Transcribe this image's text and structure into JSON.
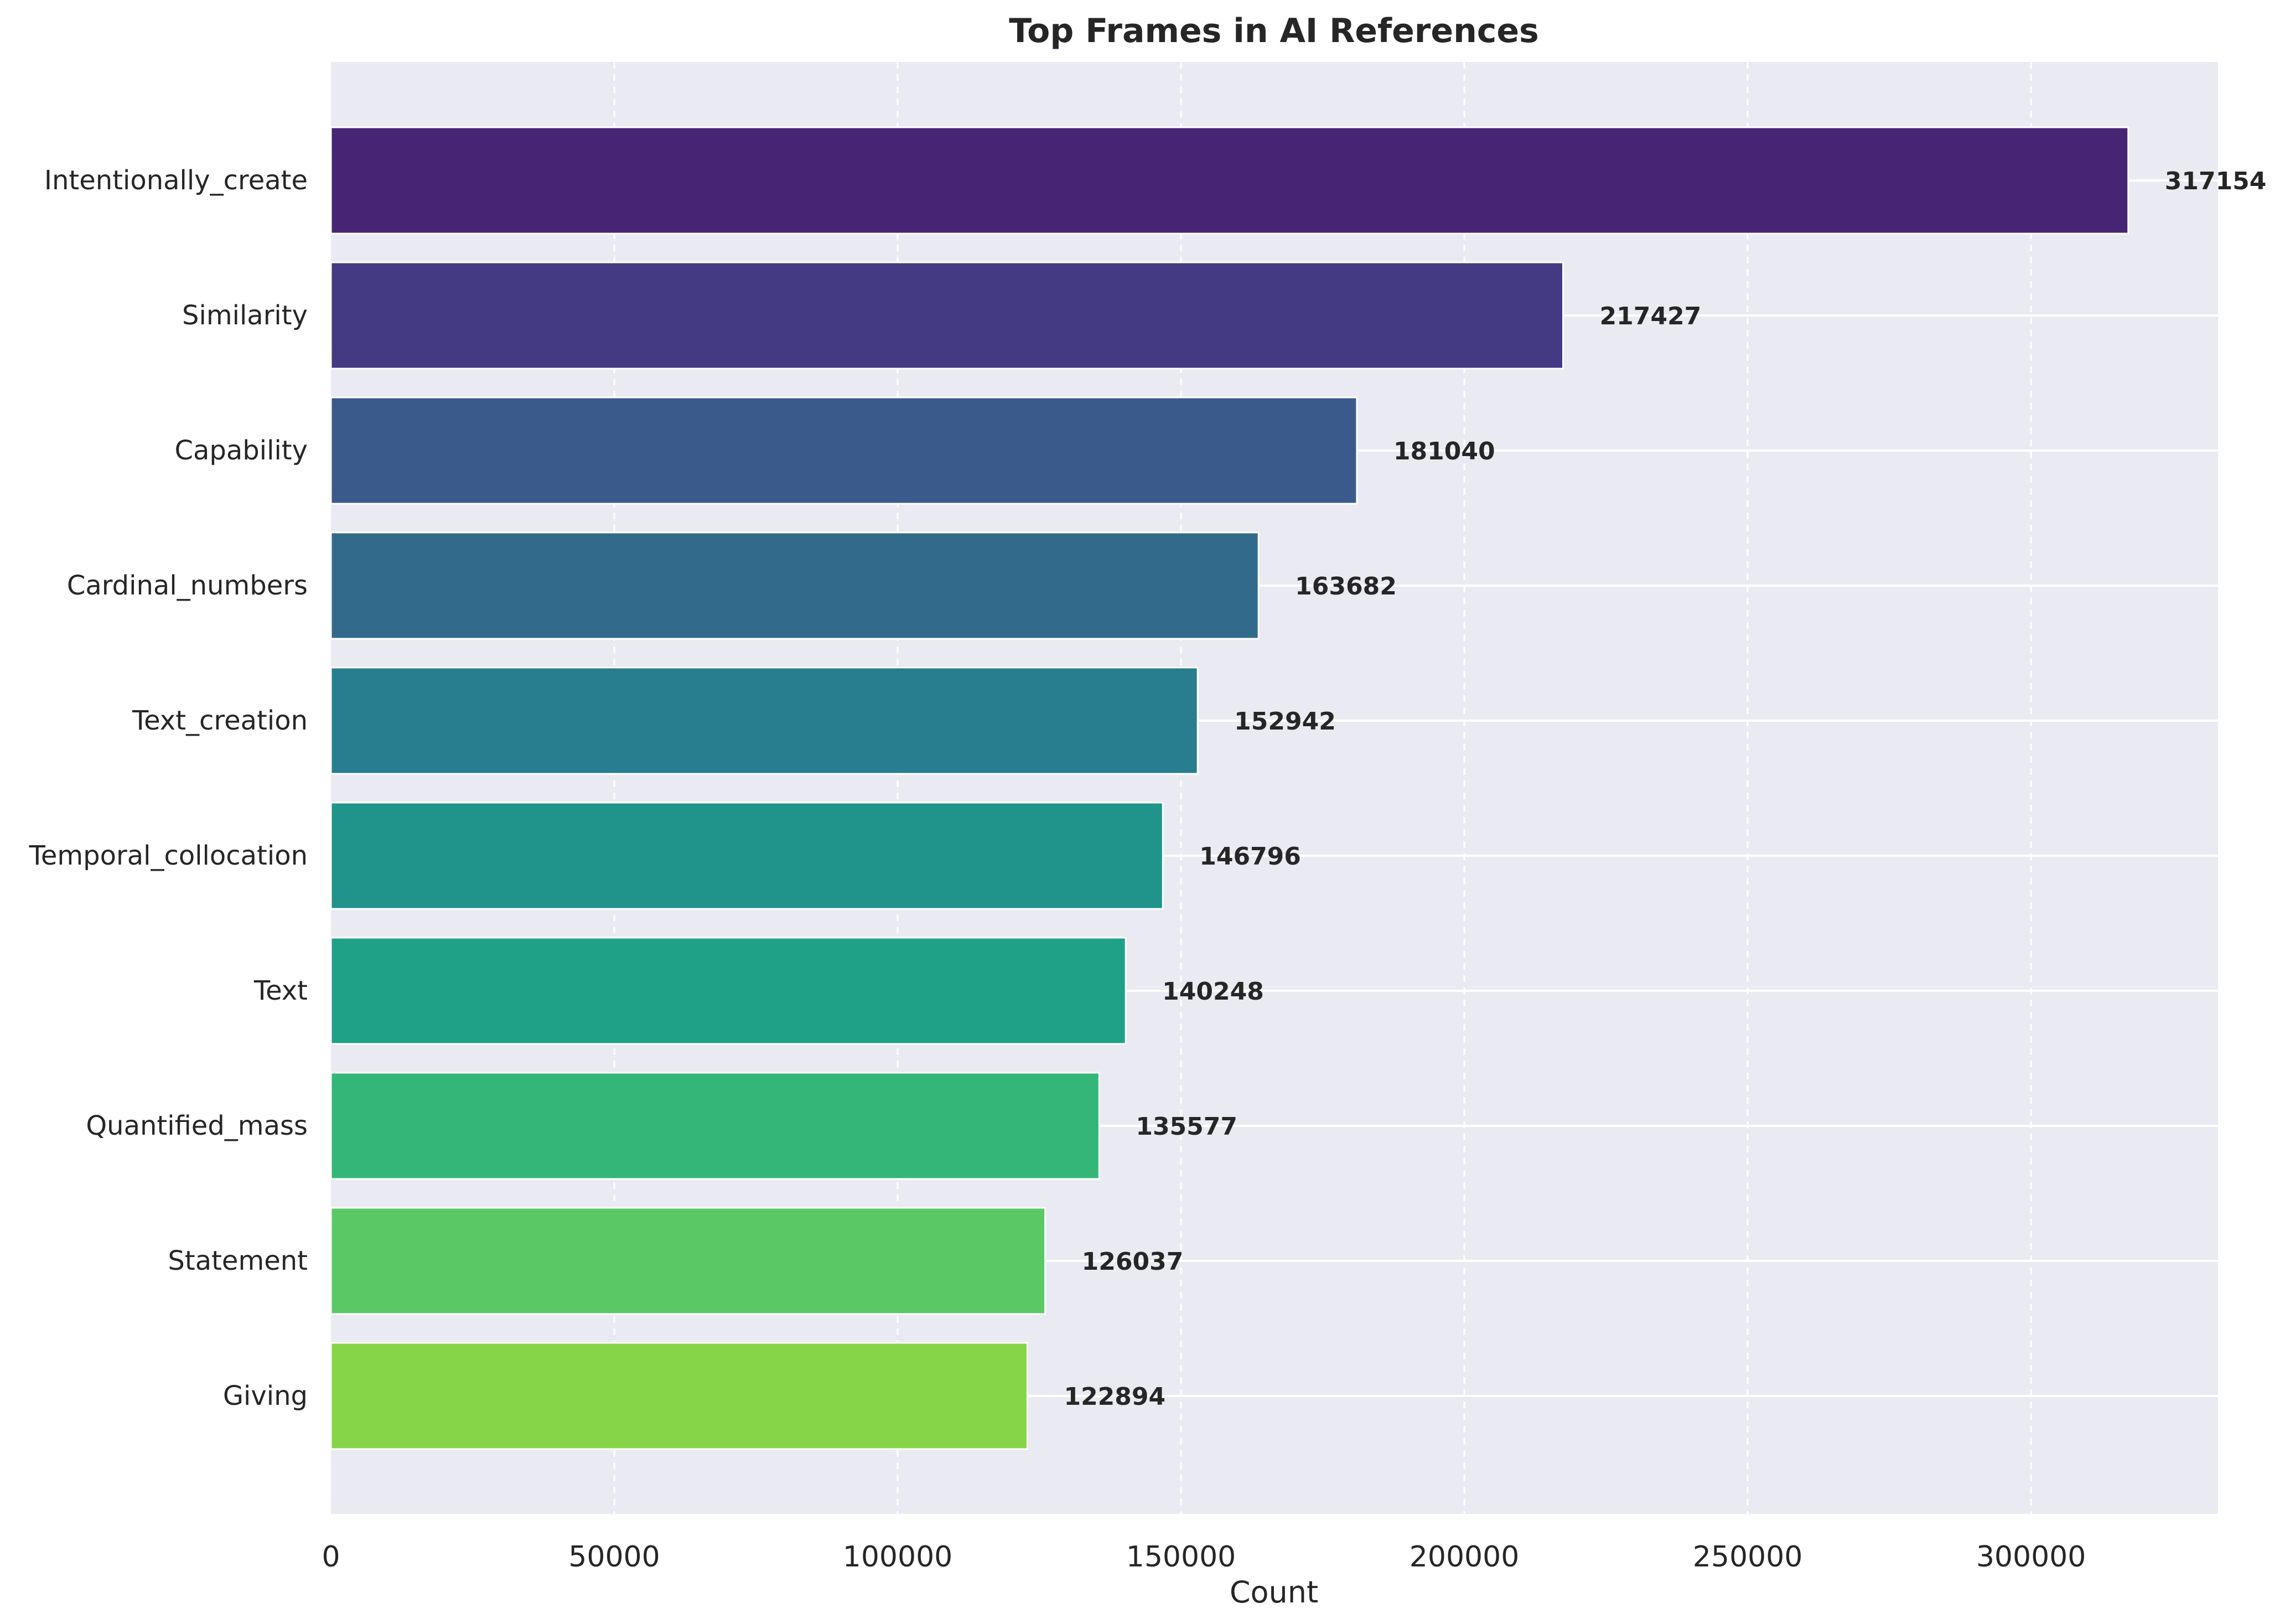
{
  "chart_data": {
    "type": "bar",
    "orientation": "horizontal",
    "title": "Top Frames in AI References",
    "xlabel": "Count",
    "ylabel": "",
    "xlim": [
      0,
      333000
    ],
    "xticks": [
      0,
      50000,
      100000,
      150000,
      200000,
      250000,
      300000
    ],
    "grid": true,
    "categories": [
      "Intentionally_create",
      "Similarity",
      "Capability",
      "Cardinal_numbers",
      "Text_creation",
      "Temporal_collocation",
      "Text",
      "Quantified_mass",
      "Statement",
      "Giving"
    ],
    "values": [
      317154,
      217427,
      181040,
      163682,
      152942,
      146796,
      140248,
      135577,
      126037,
      122894
    ],
    "colors": [
      "#482475",
      "#443a83",
      "#3b5a8c",
      "#326a8c",
      "#287d8e",
      "#20938b",
      "#1fa187",
      "#34b679",
      "#5ac865",
      "#86d549"
    ]
  },
  "style": {
    "plot_background": "#eaeaf2",
    "grid_color": "#ffffff",
    "text_color": "#262626"
  }
}
